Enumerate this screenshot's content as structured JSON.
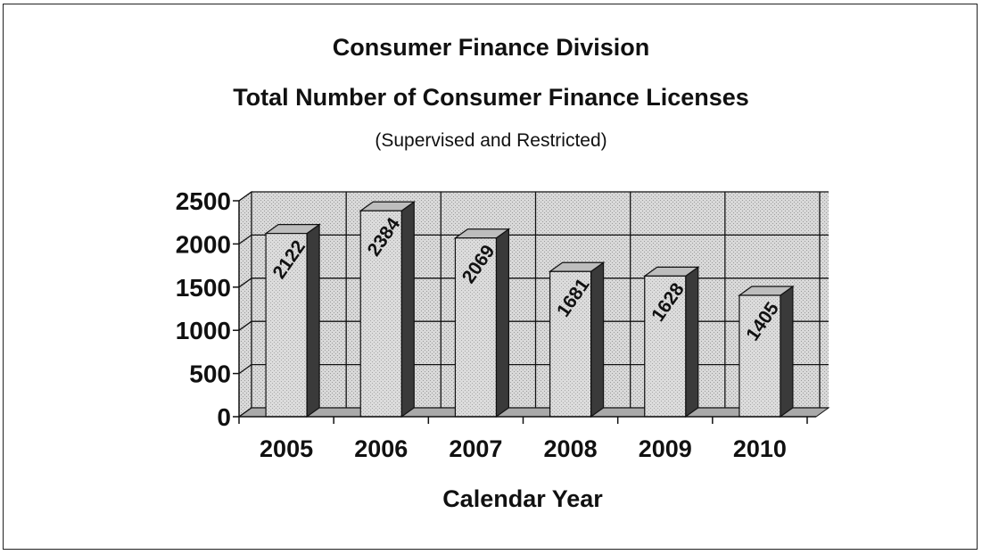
{
  "chart_data": {
    "type": "bar",
    "title": "Consumer Finance Division",
    "subtitle": "Total Number of Consumer Finance Licenses",
    "note": "(Supervised and Restricted)",
    "xlabel": "Calendar Year",
    "ylabel": "",
    "categories": [
      "2005",
      "2006",
      "2007",
      "2008",
      "2009",
      "2010"
    ],
    "values": [
      2122,
      2384,
      2069,
      1681,
      1628,
      1405
    ],
    "ylim": [
      0,
      2500
    ],
    "yticks": [
      0,
      500,
      1000,
      1500,
      2000,
      2500
    ],
    "grid": true,
    "three_d": true,
    "colors": {
      "bar_front": "#d6d6d6",
      "bar_top": "#bdbdbd",
      "bar_side": "#3a3a3a",
      "wall": "#cfcfcf",
      "floor": "#a9a9a9",
      "grid": "#111111"
    }
  }
}
